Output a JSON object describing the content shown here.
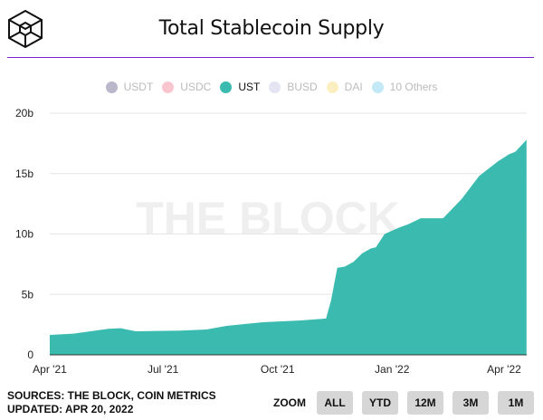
{
  "header": {
    "title": "Total Stablecoin Supply",
    "logo": "The Block cube logo"
  },
  "legend": [
    {
      "label": "USDT",
      "color": "#b9b7c9",
      "active": false
    },
    {
      "label": "USDC",
      "color": "#f9c6cf",
      "active": false
    },
    {
      "label": "UST",
      "color": "#3bbbb0",
      "active": true
    },
    {
      "label": "BUSD",
      "color": "#e4e4f3",
      "active": false
    },
    {
      "label": "DAI",
      "color": "#fbefc2",
      "active": false
    },
    {
      "label": "10 Others",
      "color": "#c3e9f7",
      "active": false
    }
  ],
  "watermark": "THE BLOCK",
  "footer": {
    "sources": "SOURCES: THE BLOCK, COIN METRICS",
    "updated": "UPDATED: APR 20, 2022"
  },
  "zoom": {
    "label": "ZOOM",
    "buttons": [
      "ALL",
      "YTD",
      "12M",
      "3M",
      "1M"
    ]
  },
  "chart_data": {
    "type": "area",
    "title": "Total Stablecoin Supply",
    "series": [
      {
        "name": "UST",
        "color": "#3bbbb0",
        "points": [
          [
            "2021-04-01",
            1.65
          ],
          [
            "2021-04-20",
            1.75
          ],
          [
            "2021-05-18",
            2.15
          ],
          [
            "2021-05-28",
            2.2
          ],
          [
            "2021-06-09",
            1.95
          ],
          [
            "2021-07-15",
            2.0
          ],
          [
            "2021-08-05",
            2.1
          ],
          [
            "2021-08-21",
            2.4
          ],
          [
            "2021-09-19",
            2.7
          ],
          [
            "2021-10-20",
            2.85
          ],
          [
            "2021-11-09",
            3.0
          ],
          [
            "2021-11-13",
            4.5
          ],
          [
            "2021-11-18",
            7.2
          ],
          [
            "2021-11-24",
            7.3
          ],
          [
            "2021-12-01",
            7.7
          ],
          [
            "2021-12-08",
            8.4
          ],
          [
            "2021-12-15",
            8.8
          ],
          [
            "2021-12-19",
            8.9
          ],
          [
            "2021-12-26",
            10.0
          ],
          [
            "2022-01-06",
            10.5
          ],
          [
            "2022-01-14",
            10.8
          ],
          [
            "2022-01-24",
            11.3
          ],
          [
            "2022-02-11",
            11.3
          ],
          [
            "2022-02-26",
            12.9
          ],
          [
            "2022-03-12",
            14.8
          ],
          [
            "2022-03-27",
            16.0
          ],
          [
            "2022-04-05",
            16.6
          ],
          [
            "2022-04-10",
            16.8
          ],
          [
            "2022-04-19",
            17.8
          ]
        ]
      }
    ],
    "xticks": [
      [
        "2021-04-01",
        "Apr '21"
      ],
      [
        "2021-07-01",
        "Jul '21"
      ],
      [
        "2021-10-01",
        "Oct '21"
      ],
      [
        "2022-01-01",
        "Jan '22"
      ],
      [
        "2022-04-01",
        "Apr '22"
      ]
    ],
    "yticks": [
      [
        0,
        "0"
      ],
      [
        5,
        "5b"
      ],
      [
        10,
        "10b"
      ],
      [
        15,
        "15b"
      ],
      [
        20,
        "20b"
      ]
    ],
    "xlabel": "",
    "ylabel": "",
    "ylim": [
      0,
      20
    ],
    "xlim": [
      "2021-04-01",
      "2022-04-19"
    ],
    "grid": true,
    "legend_position": "top-center"
  }
}
